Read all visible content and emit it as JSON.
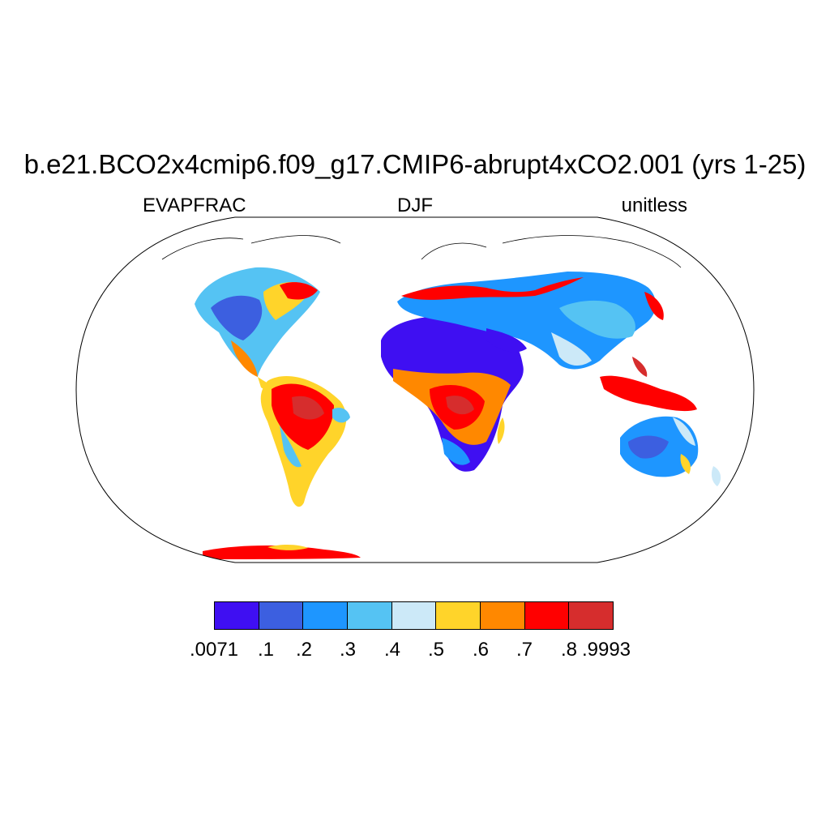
{
  "title": "b.e21.BCO2x4cmip6.f09_g17.CMIP6-abrupt4xCO2.001 (yrs 1-25)",
  "left_string": "EVAPFRAC",
  "center_string": "DJF",
  "right_string": "unitless",
  "projection": "Robinson",
  "colorbar": {
    "colors": [
      "#3f0ff2",
      "#3c5fe0",
      "#1e96ff",
      "#55c3f3",
      "#cce9f8",
      "#ffd42a",
      "#ff8800",
      "#ff0000",
      "#d62d2d"
    ],
    "labels": [
      ".0071",
      ".1",
      ".2",
      ".3",
      ".4",
      ".5",
      ".6",
      ".7",
      ".8",
      ".9993"
    ]
  }
}
